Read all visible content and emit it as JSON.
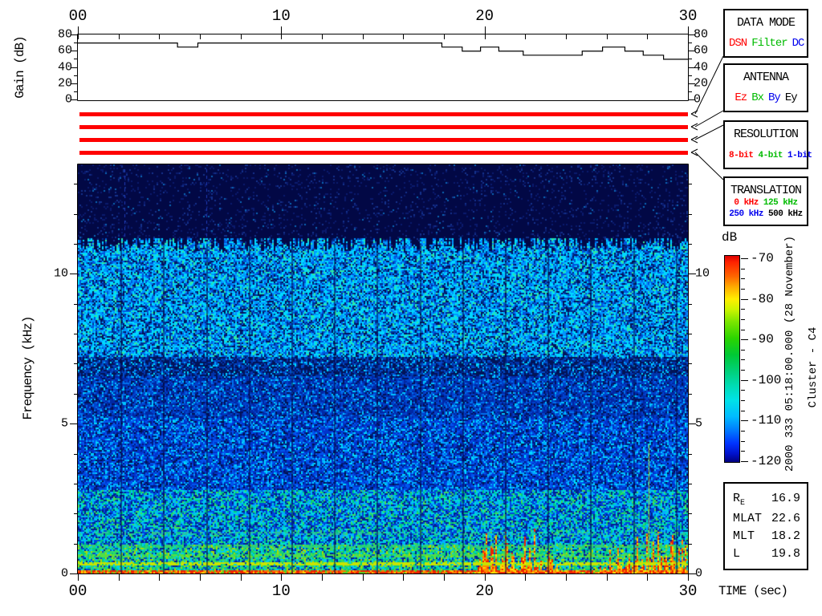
{
  "accent_colors": {
    "red": "#ff0000",
    "green": "#00bb00",
    "blue": "#0000ee",
    "black": "#000000"
  },
  "time_axis": {
    "unit_label": "TIME (sec)",
    "xlim": [
      0,
      30
    ],
    "tick_step_sec": 2,
    "labels": [
      {
        "t": 0,
        "text": "00"
      },
      {
        "t": 10,
        "text": "10"
      },
      {
        "t": 20,
        "text": "20"
      },
      {
        "t": 30,
        "text": "30"
      }
    ]
  },
  "gain_plot": {
    "ylabel": "Gain (dB)",
    "ylim": [
      0,
      80
    ],
    "yticks": [
      {
        "v": 80,
        "text": "80"
      },
      {
        "v": 60,
        "text": "60"
      },
      {
        "v": 40,
        "text": "40"
      },
      {
        "v": 20,
        "text": "20"
      },
      {
        "v": 0,
        "text": "0"
      }
    ],
    "steps_time_db": [
      [
        0,
        70
      ],
      [
        4.9,
        65
      ],
      [
        5.9,
        70
      ],
      [
        17.9,
        65
      ],
      [
        18.9,
        60
      ],
      [
        19.8,
        65
      ],
      [
        20.7,
        60
      ],
      [
        21.9,
        55
      ],
      [
        24.8,
        60
      ],
      [
        25.8,
        65
      ],
      [
        26.9,
        60
      ],
      [
        27.8,
        55
      ],
      [
        28.8,
        50
      ],
      [
        30,
        50
      ]
    ]
  },
  "status_bars": {
    "color": "#ff0000",
    "count": 4,
    "meaning": [
      "DSN data mode entire interval",
      "Ez antenna entire interval",
      "8-bit resolution entire interval",
      "0 kHz translation entire interval"
    ]
  },
  "boxes": [
    {
      "title": "DATA MODE",
      "items": [
        {
          "text": "DSN",
          "color": "#ff0000"
        },
        {
          "text": "Filter",
          "color": "#00bb00"
        },
        {
          "text": "DC",
          "color": "#0000ee"
        }
      ]
    },
    {
      "title": "ANTENNA",
      "items": [
        {
          "text": "Ez",
          "color": "#ff0000"
        },
        {
          "text": "Bx",
          "color": "#00bb00"
        },
        {
          "text": "By",
          "color": "#0000ee"
        },
        {
          "text": "Ey",
          "color": "#000000"
        }
      ]
    },
    {
      "title": "RESOLUTION",
      "items": [
        {
          "text": "8-bit",
          "color": "#ff0000"
        },
        {
          "text": "4-bit",
          "color": "#00bb00"
        },
        {
          "text": "1-bit",
          "color": "#0000ee"
        }
      ]
    },
    {
      "title": "TRANSLATION",
      "items_row1": [
        {
          "text": "0 kHz",
          "color": "#ff0000"
        },
        {
          "text": "125 kHz",
          "color": "#00bb00"
        }
      ],
      "items_row2": [
        {
          "text": "250 kHz",
          "color": "#0000ee"
        },
        {
          "text": "500 kHz",
          "color": "#000000"
        }
      ]
    }
  ],
  "colorbar": {
    "label": "dB",
    "range": [
      -120,
      -70
    ],
    "ticks": [
      {
        "v": -70,
        "text": "-70"
      },
      {
        "v": -80,
        "text": "-80"
      },
      {
        "v": -90,
        "text": "-90"
      },
      {
        "v": -100,
        "text": "-100"
      },
      {
        "v": -110,
        "text": "-110"
      },
      {
        "v": -120,
        "text": "-120"
      }
    ],
    "gradient_stops": [
      [
        "#dd0000",
        0
      ],
      [
        "#ff2200",
        3
      ],
      [
        "#ff6600",
        10
      ],
      [
        "#ffaa00",
        15
      ],
      [
        "#ffee00",
        21
      ],
      [
        "#ccf500",
        26
      ],
      [
        "#7ae600",
        32
      ],
      [
        "#2bd400",
        40
      ],
      [
        "#00c835",
        48
      ],
      [
        "#00d07a",
        56
      ],
      [
        "#00dcb4",
        63
      ],
      [
        "#00e2e8",
        70
      ],
      [
        "#00bbff",
        78
      ],
      [
        "#0077ff",
        85
      ],
      [
        "#0033ff",
        91
      ],
      [
        "#0011cc",
        96
      ],
      [
        "#000080",
        100
      ]
    ]
  },
  "side_text": {
    "datetime": "2000 333 05:18:00.000 (28 November)",
    "spacecraft": "Cluster - C4"
  },
  "info_table": {
    "rows": [
      {
        "label": "R",
        "sub": "E",
        "value": "16.9"
      },
      {
        "label": "MLAT",
        "sub": "",
        "value": "22.6"
      },
      {
        "label": "MLT",
        "sub": "",
        "value": "18.2"
      },
      {
        "label": "L",
        "sub": "",
        "value": "19.8"
      }
    ]
  },
  "spectrogram": {
    "ylabel": "Frequency (kHz)",
    "fmax_khz": 13.65,
    "yticks": [
      {
        "v": 10,
        "text": "10"
      },
      {
        "v": 5,
        "text": "5"
      },
      {
        "v": 0,
        "text": "0"
      }
    ],
    "minor_ytick_step_khz": 1,
    "transition_khz": 11.15,
    "transition_jitter_khz": 0.8,
    "bands": [
      {
        "f0": 11.2,
        "f1": 13.65,
        "palette": [
          [
            "#020845",
            880
          ],
          [
            "#0a1a6e",
            80
          ],
          [
            "#14328c",
            30
          ],
          [
            "#0a66b4",
            10
          ]
        ]
      },
      {
        "f0": 7.25,
        "f1": 11.2,
        "palette": [
          [
            "#00d8ff",
            280
          ],
          [
            "#0096ff",
            220
          ],
          [
            "#0055dd",
            170
          ],
          [
            "#012f8f",
            120
          ],
          [
            "#2fe8a0",
            80
          ],
          [
            "#041258",
            130
          ]
        ]
      },
      {
        "f0": 6.6,
        "f1": 7.25,
        "palette": [
          [
            "#021458",
            420
          ],
          [
            "#0133aa",
            280
          ],
          [
            "#0150cc",
            160
          ],
          [
            "#00a0ff",
            80
          ],
          [
            "#00dcff",
            60
          ]
        ]
      },
      {
        "f0": 5.2,
        "f1": 6.6,
        "palette": [
          [
            "#0128a4",
            320
          ],
          [
            "#0142cc",
            280
          ],
          [
            "#021258",
            170
          ],
          [
            "#0072ee",
            130
          ],
          [
            "#00c4ff",
            100
          ]
        ]
      },
      {
        "f0": 2.8,
        "f1": 5.2,
        "palette": [
          [
            "#0134cc",
            300
          ],
          [
            "#0156ee",
            220
          ],
          [
            "#011c80",
            200
          ],
          [
            "#00a8ff",
            130
          ],
          [
            "#00d8ff",
            90
          ],
          [
            "#021048",
            60
          ]
        ]
      },
      {
        "f0": 1.0,
        "f1": 2.8,
        "palette": [
          [
            "#0144dd",
            260
          ],
          [
            "#00b0ff",
            200
          ],
          [
            "#00dcd2",
            170
          ],
          [
            "#02208f",
            180
          ],
          [
            "#00cc80",
            120
          ],
          [
            "#44dd55",
            70
          ]
        ]
      },
      {
        "f0": 0.15,
        "f1": 1.0,
        "palette": [
          [
            "#00cc88",
            270
          ],
          [
            "#39d960",
            220
          ],
          [
            "#00ccee",
            180
          ],
          [
            "#0144cc",
            130
          ],
          [
            "#aadd00",
            110
          ],
          [
            "#02208f",
            90
          ]
        ]
      },
      {
        "f0": 0.0,
        "f1": 0.15,
        "palette": [
          [
            "#ee2200",
            450
          ],
          [
            "#ff7700",
            250
          ],
          [
            "#ffcc00",
            150
          ],
          [
            "#55cc22",
            150
          ]
        ]
      }
    ],
    "spike_windows": [
      {
        "t0": 19.6,
        "t1": 23.6
      },
      {
        "t0": 25.6,
        "t1": 30
      }
    ],
    "spike_palette": [
      [
        "#ee2200",
        40
      ],
      [
        "#ff8800",
        30
      ],
      [
        "#ffd000",
        20
      ],
      [
        "#ffee00",
        10
      ]
    ],
    "horizontal_lines": [
      {
        "f": 0.35,
        "color": "#c8e400",
        "p": 0.75
      },
      {
        "f": 0.62,
        "color": "#55dd44",
        "p": 0.5
      },
      {
        "f": 0.95,
        "color": "#33cc77",
        "p": 0.45
      },
      {
        "f": 1.35,
        "color": "#2bbfa0",
        "p": 0.3
      }
    ],
    "gap_line_times": [
      2.1,
      4.2,
      6.3,
      8.4,
      10.5,
      12.6,
      14.7,
      16.8,
      18.9,
      21.0,
      23.1,
      25.2,
      27.3,
      29.4
    ],
    "dashed_line_times": [
      2.3,
      6.3
    ],
    "yellow_line": {
      "t": 28.05,
      "f_top": 4.3,
      "color": "#c8cf00"
    }
  },
  "chart_data": [
    {
      "type": "line",
      "name": "receiver-gain",
      "title": "",
      "xlabel": "TIME (sec)",
      "ylabel": "Gain (dB)",
      "xlim": [
        0,
        30
      ],
      "ylim": [
        0,
        80
      ],
      "step_interpolation": true,
      "points_time_db": [
        [
          0,
          70
        ],
        [
          4.9,
          65
        ],
        [
          5.9,
          70
        ],
        [
          17.9,
          65
        ],
        [
          18.9,
          60
        ],
        [
          19.8,
          65
        ],
        [
          20.7,
          60
        ],
        [
          21.9,
          55
        ],
        [
          24.8,
          60
        ],
        [
          25.8,
          65
        ],
        [
          26.9,
          60
        ],
        [
          27.8,
          55
        ],
        [
          28.8,
          50
        ],
        [
          30,
          50
        ]
      ]
    },
    {
      "type": "heatmap",
      "name": "wideband-spectrogram",
      "xlabel": "TIME (sec)",
      "ylabel": "Frequency (kHz)",
      "xlim": [
        0,
        30
      ],
      "ylim": [
        0,
        13.65
      ],
      "colorbar": {
        "label": "dB",
        "min": -120,
        "max": -70
      },
      "features": [
        {
          "desc": "quiet region above ~11.2 kHz",
          "f_range": [
            11.2,
            13.65
          ],
          "intensity_db": -120
        },
        {
          "desc": "broadband hiss band",
          "f_range": [
            7.2,
            11.2
          ],
          "intensity_db": -105
        },
        {
          "desc": "darker transition band",
          "f_range": [
            5.2,
            7.2
          ],
          "intensity_db": -114
        },
        {
          "desc": "diffuse blue noise",
          "f_range": [
            1,
            5.2
          ],
          "intensity_db": -111
        },
        {
          "desc": "green low-frequency band with narrow horizontal lines",
          "f_range": [
            0.15,
            1.0
          ],
          "intensity_db": -98
        },
        {
          "desc": "intense red baseline",
          "f_range": [
            0,
            0.15
          ],
          "intensity_db": -72
        },
        {
          "desc": "red/orange bursts near bottom",
          "t_range": [
            19.6,
            23.6
          ],
          "f_range": [
            0,
            1.5
          ],
          "intensity_db": -75
        },
        {
          "desc": "red/orange bursts near bottom",
          "t_range": [
            25.6,
            30
          ],
          "f_range": [
            0,
            1.5
          ],
          "intensity_db": -75
        },
        {
          "desc": "periodic thin dark vertical gaps every ~2.1 s",
          "t_step": 2.1
        }
      ]
    }
  ]
}
